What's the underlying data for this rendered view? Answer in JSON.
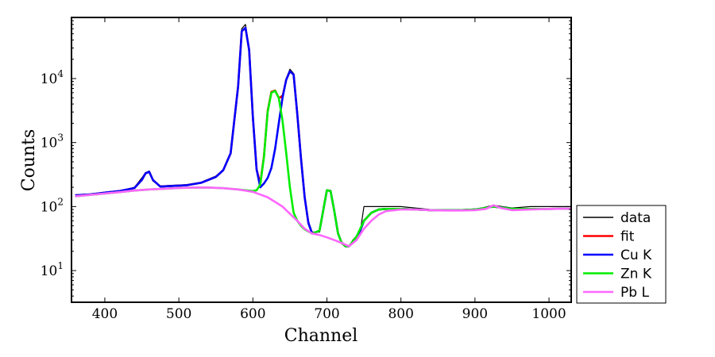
{
  "chart_data": {
    "type": "line",
    "title": "",
    "xlabel": "Channel",
    "ylabel": "Counts",
    "xlim": [
      355,
      1030
    ],
    "ylim": [
      3.2,
      90000
    ],
    "yscale": "log",
    "x_ticks": [
      400,
      500,
      600,
      700,
      800,
      900,
      1000
    ],
    "y_ticks": [
      {
        "value": 10,
        "base": "10",
        "exp": "1"
      },
      {
        "value": 100,
        "base": "10",
        "exp": "2"
      },
      {
        "value": 1000,
        "base": "10",
        "exp": "3"
      },
      {
        "value": 10000,
        "base": "10",
        "exp": "4"
      }
    ],
    "grid": false,
    "legend_placement": "outside-right-bottom",
    "series": [
      {
        "name": "data",
        "color": "#000000",
        "x": [
          360,
          380,
          400,
          420,
          440,
          450,
          455,
          460,
          465,
          475,
          490,
          510,
          530,
          550,
          560,
          570,
          580,
          585,
          590,
          595,
          600,
          605,
          610,
          615,
          620,
          625,
          630,
          635,
          640,
          645,
          650,
          655,
          660,
          665,
          670,
          675,
          680,
          690,
          700,
          705,
          710,
          715,
          720,
          725,
          730,
          735,
          740,
          745,
          750,
          760,
          770,
          780,
          800,
          820,
          840,
          860,
          880,
          900,
          925,
          950,
          975,
          1000,
          1030
        ],
        "y": [
          150,
          155,
          165,
          175,
          200,
          280,
          340,
          360,
          250,
          210,
          215,
          220,
          240,
          300,
          380,
          700,
          8000,
          60000,
          70000,
          30000,
          3000,
          400,
          220,
          600,
          3000,
          6000,
          6400,
          5000,
          5500,
          10000,
          14000,
          12000,
          3000,
          600,
          150,
          60,
          40,
          40,
          180,
          180,
          90,
          40,
          28,
          25,
          24,
          30,
          35,
          40,
          100,
          100,
          100,
          100,
          100,
          95,
          90,
          90,
          90,
          90,
          105,
          95,
          100,
          100,
          100
        ]
      },
      {
        "name": "fit",
        "color": "#ff0000",
        "x": [
          360,
          380,
          400,
          420,
          440,
          450,
          455,
          460,
          465,
          475,
          490,
          510,
          530,
          550,
          560,
          570,
          580,
          585,
          590,
          595,
          600,
          605,
          610,
          615,
          620,
          625,
          630,
          635,
          640,
          645,
          650,
          655,
          660,
          665,
          670,
          675,
          680,
          690,
          700,
          705,
          710,
          715,
          720,
          725,
          730,
          735,
          740,
          745,
          750,
          760,
          770,
          780,
          800,
          820,
          840,
          860,
          880,
          900,
          925,
          950,
          975,
          1000,
          1030
        ],
        "y": [
          150,
          155,
          165,
          175,
          195,
          260,
          330,
          350,
          260,
          205,
          210,
          215,
          235,
          290,
          370,
          680,
          7500,
          55000,
          62000,
          28000,
          2500,
          380,
          230,
          620,
          3100,
          6200,
          6500,
          5000,
          5200,
          9500,
          13000,
          11500,
          2800,
          560,
          140,
          55,
          38,
          42,
          180,
          175,
          85,
          38,
          27,
          24,
          24,
          28,
          34,
          42,
          60,
          80,
          90,
          92,
          92,
          90,
          88,
          88,
          88,
          90,
          100,
          92,
          92,
          92,
          93
        ]
      },
      {
        "name": "Cu K",
        "color": "#0000ff",
        "x": [
          360,
          380,
          400,
          420,
          440,
          450,
          455,
          460,
          465,
          475,
          490,
          510,
          530,
          550,
          560,
          570,
          580,
          585,
          590,
          595,
          600,
          605,
          610,
          615,
          620,
          625,
          630,
          635,
          640,
          645,
          650,
          655,
          660,
          665,
          670,
          675,
          680,
          690,
          700,
          705,
          710,
          715,
          720,
          725,
          730,
          735,
          740,
          745,
          750,
          760,
          770,
          780,
          800,
          820,
          840,
          860,
          880,
          900,
          925,
          950,
          975,
          1000,
          1030
        ],
        "y": [
          150,
          155,
          165,
          175,
          195,
          260,
          330,
          350,
          260,
          205,
          210,
          215,
          235,
          290,
          370,
          680,
          7500,
          55000,
          62000,
          28000,
          2500,
          380,
          200,
          230,
          280,
          400,
          800,
          2000,
          5000,
          9500,
          13000,
          11500,
          2800,
          560,
          140,
          55,
          38,
          42,
          180,
          175,
          85,
          38,
          27,
          24,
          24,
          28,
          34,
          42,
          60,
          80,
          90,
          92,
          92,
          90,
          88,
          88,
          88,
          90,
          100,
          92,
          92,
          92,
          93
        ]
      },
      {
        "name": "Zn K",
        "color": "#00ee00",
        "x": [
          360,
          380,
          400,
          420,
          440,
          460,
          480,
          500,
          520,
          540,
          560,
          580,
          600,
          605,
          610,
          615,
          620,
          625,
          630,
          635,
          640,
          645,
          650,
          655,
          660,
          665,
          670,
          680,
          690,
          700,
          705,
          710,
          715,
          720,
          725,
          730,
          740,
          750,
          760,
          770,
          780,
          800,
          820,
          840,
          860,
          880,
          900,
          925,
          950,
          975,
          1000,
          1030
        ],
        "y": [
          145,
          152,
          160,
          168,
          178,
          185,
          190,
          195,
          198,
          198,
          194,
          185,
          175,
          180,
          220,
          600,
          3000,
          6000,
          6400,
          5000,
          2200,
          700,
          200,
          80,
          60,
          50,
          44,
          38,
          42,
          180,
          175,
          85,
          38,
          27,
          24,
          24,
          34,
          60,
          80,
          90,
          92,
          92,
          90,
          88,
          88,
          88,
          90,
          100,
          92,
          92,
          92,
          93
        ]
      },
      {
        "name": "Pb L",
        "color": "#ff66ff",
        "x": [
          360,
          380,
          400,
          420,
          440,
          460,
          480,
          500,
          520,
          540,
          560,
          580,
          600,
          620,
          640,
          660,
          670,
          680,
          690,
          700,
          710,
          720,
          730,
          740,
          750,
          760,
          770,
          780,
          800,
          820,
          840,
          860,
          880,
          900,
          915,
          925,
          935,
          950,
          975,
          1000,
          1030
        ],
        "y": [
          145,
          152,
          160,
          168,
          178,
          185,
          190,
          195,
          198,
          198,
          194,
          185,
          170,
          140,
          100,
          60,
          45,
          38,
          36,
          33,
          30,
          27,
          24,
          30,
          45,
          60,
          75,
          85,
          90,
          90,
          88,
          87,
          87,
          88,
          92,
          105,
          95,
          88,
          90,
          92,
          93
        ]
      }
    ]
  }
}
